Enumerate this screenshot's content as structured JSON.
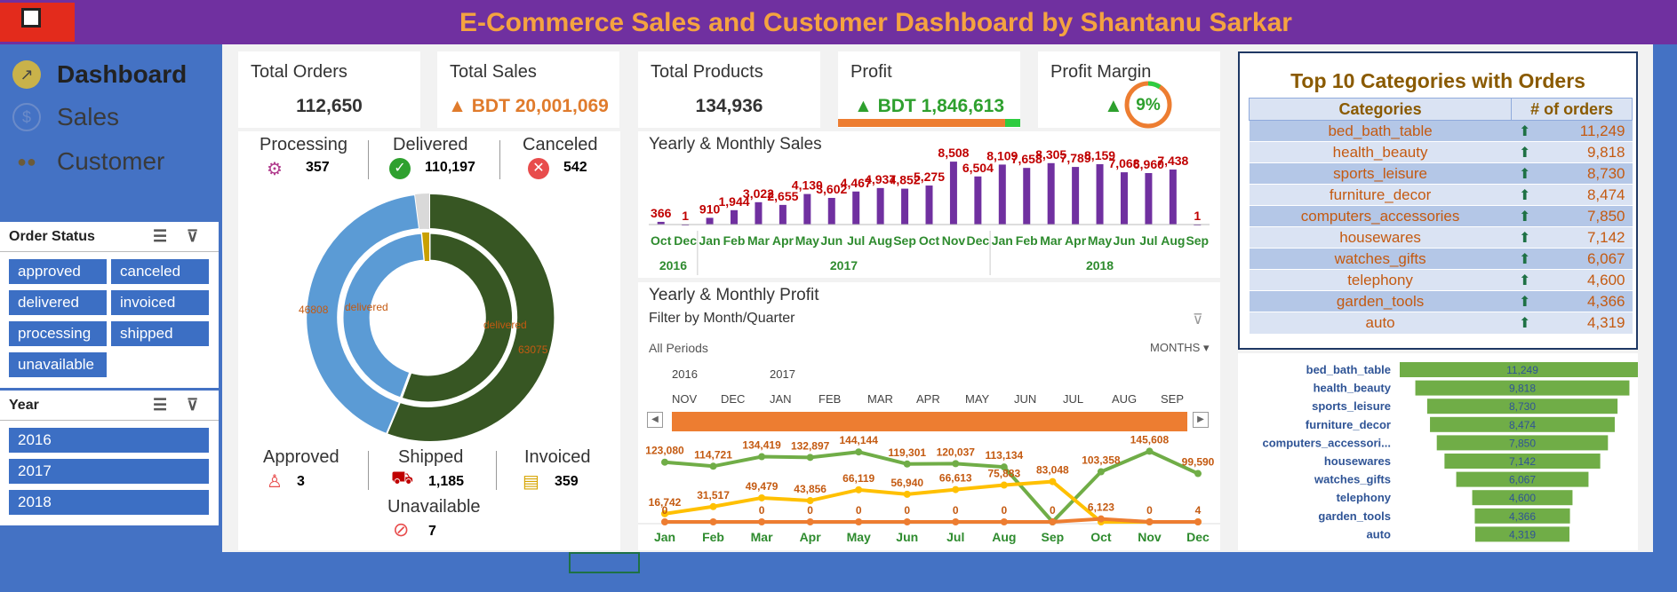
{
  "title": "E-Commerce Sales and Customer Dashboard by Shantanu Sarkar",
  "nav": [
    {
      "label": "Dashboard",
      "icon": "chart-icon"
    },
    {
      "label": "Sales",
      "icon": "dollar-icon"
    },
    {
      "label": "Customer",
      "icon": "people-icon"
    }
  ],
  "order_status": {
    "title": "Order Status",
    "items": [
      "approved",
      "canceled",
      "delivered",
      "invoiced",
      "processing",
      "shipped",
      "unavailable"
    ]
  },
  "year": {
    "title": "Year",
    "items": [
      "2016",
      "2017",
      "2018"
    ]
  },
  "kpis": {
    "orders": {
      "label": "Total Orders",
      "value": "112,650"
    },
    "sales": {
      "label": "Total Sales",
      "value": "▲ BDT 20,001,069"
    },
    "products": {
      "label": "Total Products",
      "value": "134,936"
    },
    "profit": {
      "label": "Profit",
      "value": "▲ BDT 1,846,613"
    },
    "margin": {
      "label": "Profit Margin",
      "value": "9%",
      "arrow": "▲"
    }
  },
  "status": {
    "processing": {
      "label": "Processing",
      "value": "357"
    },
    "delivered": {
      "label": "Delivered",
      "value": "110,197"
    },
    "canceled": {
      "label": "Canceled",
      "value": "542"
    },
    "approved": {
      "label": "Approved",
      "value": "3"
    },
    "shipped": {
      "label": "Shipped",
      "value": "1,185"
    },
    "invoiced": {
      "label": "Invoiced",
      "value": "359"
    },
    "unavailable": {
      "label": "Unavailable",
      "value": "7"
    }
  },
  "donut": {
    "outer_left": "46808",
    "outer_right": "63075",
    "inner_left": "delivered",
    "inner_right": "delivered"
  },
  "sales_chart": {
    "title": "Yearly & Monthly Sales"
  },
  "profit_chart": {
    "title": "Yearly & Monthly Profit",
    "filter": "Filter by Month/Quarter",
    "periods": "All Periods",
    "unit": "MONTHS",
    "tl_years": [
      "2016",
      "2017"
    ],
    "tl_months": [
      "NOV",
      "DEC",
      "JAN",
      "FEB",
      "MAR",
      "APR",
      "MAY",
      "JUN",
      "JUL",
      "AUG",
      "SEP"
    ]
  },
  "categories": {
    "title": "Top 10 Categories with Orders",
    "col1": "Categories",
    "col2": "# of orders",
    "rows": [
      [
        "bed_bath_table",
        "11,249"
      ],
      [
        "health_beauty",
        "9,818"
      ],
      [
        "sports_leisure",
        "8,730"
      ],
      [
        "furniture_decor",
        "8,474"
      ],
      [
        "computers_accessories",
        "7,850"
      ],
      [
        "housewares",
        "7,142"
      ],
      [
        "watches_gifts",
        "6,067"
      ],
      [
        "telephony",
        "4,600"
      ],
      [
        "garden_tools",
        "4,366"
      ],
      [
        "auto",
        "4,319"
      ]
    ]
  },
  "funnel": {
    "labels": [
      "bed_bath_table",
      "health_beauty",
      "sports_leisure",
      "furniture_decor",
      "computers_accessori...",
      "housewares",
      "watches_gifts",
      "telephony",
      "garden_tools",
      "auto"
    ],
    "values": [
      11249,
      9818,
      8730,
      8474,
      7850,
      7142,
      6067,
      4600,
      4366,
      4319
    ],
    "value_labels": [
      "11,249",
      "9,818",
      "8,730",
      "8,474",
      "7,850",
      "7,142",
      "6,067",
      "4,600",
      "4,366",
      "4,319"
    ]
  },
  "chart_data": [
    {
      "type": "bar",
      "title": "Yearly & Monthly Sales",
      "categories": [
        "Oct 2016",
        "Dec 2016",
        "Jan 2017",
        "Feb 2017",
        "Mar 2017",
        "Apr 2017",
        "May 2017",
        "Jun 2017",
        "Jul 2017",
        "Aug 2017",
        "Sep 2017",
        "Oct 2017",
        "Nov 2017",
        "Dec 2017",
        "Jan 2018",
        "Feb 2018",
        "Mar 2018",
        "Apr 2018",
        "May 2018",
        "Jun 2018",
        "Jul 2018",
        "Aug 2018",
        "Sep 2018"
      ],
      "month_labels": [
        "Oct",
        "Dec",
        "Jan",
        "Feb",
        "Mar",
        "Apr",
        "May",
        "Jun",
        "Jul",
        "Aug",
        "Sep",
        "Oct",
        "Nov",
        "Dec",
        "Jan",
        "Feb",
        "Mar",
        "Apr",
        "May",
        "Jun",
        "Jul",
        "Aug",
        "Sep"
      ],
      "year_labels": [
        "2016",
        "2017",
        "2018"
      ],
      "values": [
        366,
        1,
        910,
        1944,
        3022,
        2655,
        4130,
        3602,
        4467,
        4937,
        4852,
        5275,
        8508,
        6504,
        8109,
        7658,
        8305,
        7789,
        8159,
        7068,
        6960,
        7438,
        1
      ],
      "labels": [
        "366",
        "1",
        "910",
        "1,944",
        "3,022",
        "2,655",
        "4,130",
        "3,602",
        "4,467",
        "4,937",
        "4,852",
        "5,275",
        "8,508",
        "6,504",
        "8,109",
        "7,658",
        "8,305",
        "7,789",
        "8,159",
        "7,068",
        "6,960",
        "7,438",
        "1"
      ],
      "color": "#7030a0"
    },
    {
      "type": "line",
      "title": "Yearly & Monthly Profit",
      "x": [
        "Jan",
        "Feb",
        "Mar",
        "Apr",
        "May",
        "Jun",
        "Jul",
        "Aug",
        "Sep",
        "Oct",
        "Nov",
        "Dec"
      ],
      "series": [
        {
          "values": [
            123080,
            114721,
            134419,
            132897,
            144144,
            119301,
            120037,
            113134,
            0,
            103358,
            145608,
            99590
          ],
          "labels": [
            "123,080",
            "114,721",
            "134,419",
            "132,897",
            "144,144",
            "119,301",
            "120,037",
            "113,134",
            "",
            "103,358",
            "145,608",
            "99,590"
          ],
          "color": "#70ad47"
        },
        {
          "values": [
            16742,
            31517,
            49479,
            43856,
            66119,
            56940,
            66613,
            75883,
            83048,
            0,
            0,
            0
          ],
          "labels": [
            "16,742",
            "31,517",
            "49,479",
            "43,856",
            "66,119",
            "56,940",
            "66,613",
            "75,883",
            "83,048",
            "",
            "",
            ""
          ],
          "color": "#ffc000"
        },
        {
          "values": [
            0,
            0,
            0,
            0,
            0,
            0,
            0,
            0,
            0,
            6123,
            0,
            4
          ],
          "labels": [
            "0",
            "",
            "0",
            "0",
            "0",
            "0",
            "0",
            "0",
            "0",
            "6,123",
            "0",
            "4"
          ],
          "color": "#ed7d31"
        }
      ]
    }
  ],
  "colors": {
    "purple": "#7030a0",
    "blue": "#4472c4",
    "orange": "#ed7d31",
    "green": "#70ad47",
    "darkgreen": "#375623"
  }
}
